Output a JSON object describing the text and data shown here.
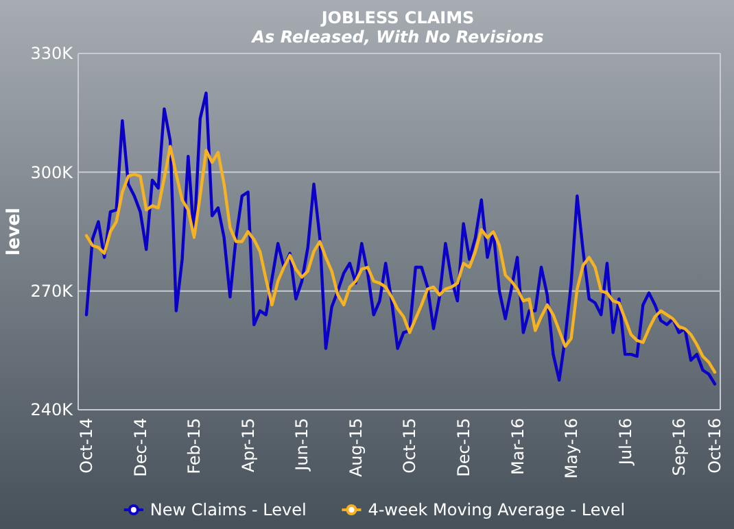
{
  "chart_data": {
    "type": "line",
    "title": "JOBLESS CLAIMS",
    "subtitle": "As Released, With No Revisions",
    "ylabel": "level",
    "categories": [
      "Oct-14",
      null,
      null,
      null,
      null,
      null,
      null,
      null,
      null,
      "Dec-14",
      null,
      null,
      null,
      null,
      null,
      null,
      null,
      null,
      "Feb-15",
      null,
      null,
      null,
      null,
      null,
      null,
      null,
      null,
      "Apr-15",
      null,
      null,
      null,
      null,
      null,
      null,
      null,
      null,
      "Jun-15",
      null,
      null,
      null,
      null,
      null,
      null,
      null,
      null,
      "Aug-15",
      null,
      null,
      null,
      null,
      null,
      null,
      null,
      null,
      "Oct-15",
      null,
      null,
      null,
      null,
      null,
      null,
      null,
      null,
      "Dec-15",
      null,
      null,
      null,
      null,
      null,
      null,
      null,
      null,
      "Mar-16",
      null,
      null,
      null,
      null,
      null,
      null,
      null,
      null,
      "May-16",
      null,
      null,
      null,
      null,
      null,
      null,
      null,
      null,
      "Jul-16",
      null,
      null,
      null,
      null,
      null,
      null,
      null,
      null,
      "Sep-16",
      null,
      null,
      null,
      null,
      null,
      "Oct-16"
    ],
    "series": [
      {
        "name": "New Claims - Level",
        "color": "#0a00c8",
        "values": [
          264,
          283,
          287.5,
          278.5,
          290,
          290.5,
          313,
          297,
          294,
          290,
          280.5,
          298,
          296,
          316,
          308,
          265,
          278,
          304,
          283.5,
          313.5,
          320,
          289,
          291,
          283.5,
          268.5,
          283.5,
          294,
          295,
          261.5,
          265,
          264,
          273,
          282,
          276,
          279.5,
          268,
          272.5,
          281,
          297,
          283.5,
          255.5,
          266,
          270,
          274.5,
          277,
          272,
          282,
          274.5,
          264,
          267.5,
          277,
          267.5,
          255.5,
          259.5,
          260,
          276,
          276,
          271,
          260.5,
          268.5,
          282,
          273,
          267.5,
          287,
          278,
          283.5,
          293,
          278.5,
          285,
          270,
          263,
          270.5,
          278.5,
          259.5,
          265,
          265,
          276,
          269,
          254,
          247.5,
          258,
          272,
          294,
          280,
          268,
          267,
          264,
          277,
          259.5,
          268,
          254,
          254,
          253.5,
          266.5,
          269.5,
          266.5,
          262.5,
          261.5,
          263,
          259.5,
          260.5,
          252.5,
          254,
          250,
          249,
          246.5
        ]
      },
      {
        "name": "4-week Moving Average - Level",
        "color": "#f5b324",
        "values": [
          284,
          281.5,
          281,
          279.5,
          285,
          287.5,
          295,
          299,
          299.5,
          299,
          290.5,
          291.5,
          291,
          298.5,
          306.5,
          299.5,
          293,
          290.5,
          283.5,
          294,
          305.5,
          302.5,
          305,
          297,
          286,
          282.5,
          282.5,
          285,
          283,
          280,
          273,
          266.5,
          272.5,
          276,
          279,
          275.5,
          273.5,
          275,
          280,
          282.5,
          278.5,
          275,
          269,
          266.5,
          271,
          272.5,
          275.5,
          276,
          272.5,
          272,
          271,
          268.5,
          265.5,
          263.5,
          259.5,
          263,
          266.5,
          270.5,
          271,
          269,
          270.5,
          271,
          272,
          277,
          276,
          280,
          285.5,
          283.5,
          285,
          281.5,
          274,
          272.5,
          270.5,
          267.5,
          268,
          260,
          263.5,
          266.5,
          264,
          260,
          256,
          258,
          270.5,
          276.5,
          278.5,
          276,
          270,
          269.5,
          267.5,
          267,
          263,
          259,
          257.5,
          257,
          260.5,
          263.5,
          265,
          264,
          263,
          261,
          260.5,
          259,
          256.5,
          253.5,
          252,
          249.5
        ]
      }
    ],
    "ylim": [
      240,
      330
    ],
    "yticks": [
      {
        "value": 240,
        "label": "240K"
      },
      {
        "value": 270,
        "label": "270K"
      },
      {
        "value": 300,
        "label": "300K"
      },
      {
        "value": 330,
        "label": "330K"
      }
    ],
    "grid": "y",
    "legend": "bottom",
    "marker": "none",
    "line_style": "solid"
  }
}
